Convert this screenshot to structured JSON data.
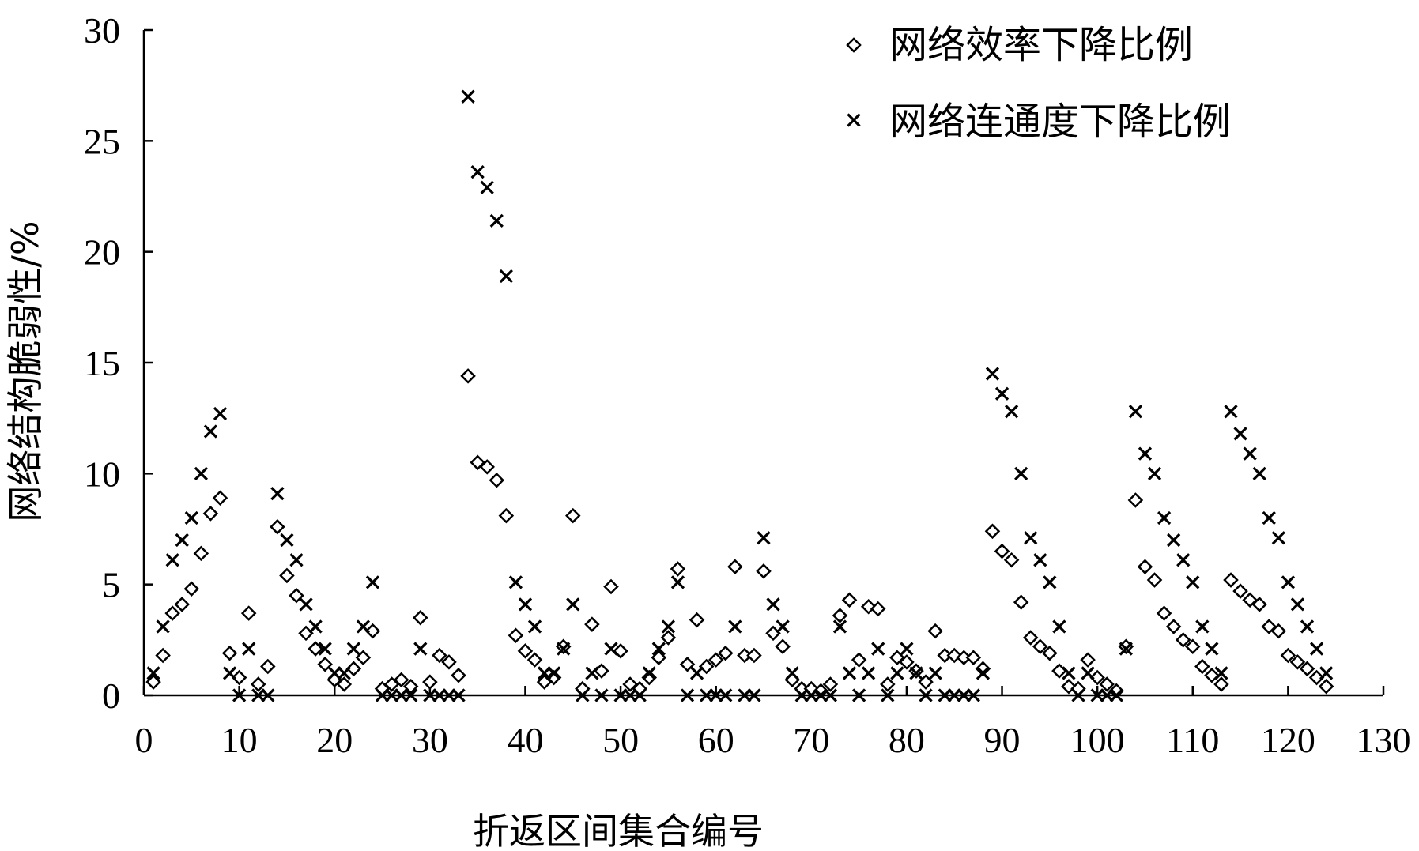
{
  "chart_data": {
    "type": "scatter",
    "xlabel": "折返区间集合编号",
    "ylabel": "网络结构脆弱性/%",
    "xlim": [
      0,
      130
    ],
    "ylim": [
      0,
      30
    ],
    "xticks": [
      0,
      10,
      20,
      30,
      40,
      50,
      60,
      70,
      80,
      90,
      100,
      110,
      120,
      130
    ],
    "yticks": [
      0,
      5,
      10,
      15,
      20,
      25,
      30
    ],
    "legend_position": "top-right",
    "grid": false,
    "series": [
      {
        "name": "网络效率下降比例",
        "marker": "diamond",
        "points": [
          [
            1,
            0.6
          ],
          [
            2,
            1.8
          ],
          [
            3,
            3.7
          ],
          [
            4,
            4.1
          ],
          [
            5,
            4.8
          ],
          [
            6,
            6.4
          ],
          [
            7,
            8.2
          ],
          [
            8,
            8.9
          ],
          [
            9,
            1.9
          ],
          [
            10,
            0.8
          ],
          [
            11,
            3.7
          ],
          [
            12,
            0.5
          ],
          [
            13,
            1.3
          ],
          [
            14,
            7.6
          ],
          [
            15,
            5.4
          ],
          [
            16,
            4.5
          ],
          [
            17,
            2.8
          ],
          [
            18,
            2.1
          ],
          [
            19,
            1.4
          ],
          [
            20,
            0.7
          ],
          [
            21,
            0.5
          ],
          [
            22,
            1.2
          ],
          [
            23,
            1.7
          ],
          [
            24,
            2.9
          ],
          [
            25,
            0.3
          ],
          [
            26,
            0.5
          ],
          [
            27,
            0.7
          ],
          [
            28,
            0.4
          ],
          [
            29,
            3.5
          ],
          [
            30,
            0.6
          ],
          [
            31,
            1.8
          ],
          [
            32,
            1.5
          ],
          [
            33,
            0.9
          ],
          [
            34,
            14.4
          ],
          [
            35,
            10.5
          ],
          [
            36,
            10.3
          ],
          [
            37,
            9.7
          ],
          [
            38,
            8.1
          ],
          [
            39,
            2.7
          ],
          [
            40,
            2.0
          ],
          [
            41,
            1.6
          ],
          [
            42,
            0.6
          ],
          [
            43,
            0.8
          ],
          [
            44,
            2.2
          ],
          [
            45,
            8.1
          ],
          [
            46,
            0.3
          ],
          [
            47,
            3.2
          ],
          [
            48,
            1.1
          ],
          [
            49,
            4.9
          ],
          [
            50,
            2.0
          ],
          [
            51,
            0.5
          ],
          [
            52,
            0.3
          ],
          [
            53,
            0.8
          ],
          [
            54,
            1.7
          ],
          [
            55,
            2.6
          ],
          [
            56,
            5.7
          ],
          [
            57,
            1.4
          ],
          [
            58,
            3.4
          ],
          [
            59,
            1.3
          ],
          [
            60,
            1.6
          ],
          [
            61,
            1.9
          ],
          [
            62,
            5.8
          ],
          [
            63,
            1.8
          ],
          [
            64,
            1.8
          ],
          [
            65,
            5.6
          ],
          [
            66,
            2.8
          ],
          [
            67,
            2.2
          ],
          [
            68,
            0.7
          ],
          [
            69,
            0.3
          ],
          [
            70,
            0.3
          ],
          [
            71,
            0.2
          ],
          [
            72,
            0.5
          ],
          [
            73,
            3.6
          ],
          [
            74,
            4.3
          ],
          [
            75,
            1.6
          ],
          [
            76,
            4.0
          ],
          [
            77,
            3.9
          ],
          [
            78,
            0.5
          ],
          [
            79,
            1.7
          ],
          [
            80,
            1.5
          ],
          [
            81,
            1.1
          ],
          [
            82,
            0.6
          ],
          [
            83,
            2.9
          ],
          [
            84,
            1.8
          ],
          [
            85,
            1.8
          ],
          [
            86,
            1.7
          ],
          [
            87,
            1.7
          ],
          [
            88,
            1.2
          ],
          [
            89,
            7.4
          ],
          [
            90,
            6.5
          ],
          [
            91,
            6.1
          ],
          [
            92,
            4.2
          ],
          [
            93,
            2.6
          ],
          [
            94,
            2.2
          ],
          [
            95,
            1.9
          ],
          [
            96,
            1.1
          ],
          [
            97,
            0.4
          ],
          [
            98,
            0.3
          ],
          [
            99,
            1.6
          ],
          [
            100,
            0.8
          ],
          [
            101,
            0.5
          ],
          [
            102,
            0.2
          ],
          [
            103,
            2.2
          ],
          [
            104,
            8.8
          ],
          [
            105,
            5.8
          ],
          [
            106,
            5.2
          ],
          [
            107,
            3.7
          ],
          [
            108,
            3.1
          ],
          [
            109,
            2.5
          ],
          [
            110,
            2.2
          ],
          [
            111,
            1.3
          ],
          [
            112,
            0.9
          ],
          [
            113,
            0.5
          ],
          [
            114,
            5.2
          ],
          [
            115,
            4.7
          ],
          [
            116,
            4.3
          ],
          [
            117,
            4.1
          ],
          [
            118,
            3.1
          ],
          [
            119,
            2.9
          ],
          [
            120,
            1.8
          ],
          [
            121,
            1.5
          ],
          [
            122,
            1.2
          ],
          [
            123,
            0.8
          ],
          [
            124,
            0.4
          ]
        ]
      },
      {
        "name": "网络连通度下降比例",
        "marker": "cross",
        "points": [
          [
            1,
            1.0
          ],
          [
            2,
            3.1
          ],
          [
            3,
            6.1
          ],
          [
            4,
            7.0
          ],
          [
            5,
            8.0
          ],
          [
            6,
            10.0
          ],
          [
            7,
            11.9
          ],
          [
            8,
            12.7
          ],
          [
            9,
            1.0
          ],
          [
            10,
            0.0
          ],
          [
            11,
            2.1
          ],
          [
            12,
            0.0
          ],
          [
            13,
            0.0
          ],
          [
            14,
            9.1
          ],
          [
            15,
            7.0
          ],
          [
            16,
            6.1
          ],
          [
            17,
            4.1
          ],
          [
            18,
            3.1
          ],
          [
            19,
            2.1
          ],
          [
            20,
            1.0
          ],
          [
            21,
            1.0
          ],
          [
            22,
            2.1
          ],
          [
            23,
            3.1
          ],
          [
            24,
            5.1
          ],
          [
            25,
            0.0
          ],
          [
            26,
            0.0
          ],
          [
            27,
            0.0
          ],
          [
            28,
            0.0
          ],
          [
            29,
            2.1
          ],
          [
            30,
            0.0
          ],
          [
            31,
            0.0
          ],
          [
            32,
            0.0
          ],
          [
            33,
            0.0
          ],
          [
            34,
            27.0
          ],
          [
            35,
            23.6
          ],
          [
            36,
            22.9
          ],
          [
            37,
            21.4
          ],
          [
            38,
            18.9
          ],
          [
            39,
            5.1
          ],
          [
            40,
            4.1
          ],
          [
            41,
            3.1
          ],
          [
            42,
            1.0
          ],
          [
            43,
            1.0
          ],
          [
            44,
            2.1
          ],
          [
            45,
            4.1
          ],
          [
            46,
            0.0
          ],
          [
            47,
            1.0
          ],
          [
            48,
            0.0
          ],
          [
            49,
            2.1
          ],
          [
            50,
            0.0
          ],
          [
            51,
            0.0
          ],
          [
            52,
            0.0
          ],
          [
            53,
            1.0
          ],
          [
            54,
            2.1
          ],
          [
            55,
            3.1
          ],
          [
            56,
            5.1
          ],
          [
            57,
            0.0
          ],
          [
            58,
            1.0
          ],
          [
            59,
            0.0
          ],
          [
            60,
            0.0
          ],
          [
            61,
            0.0
          ],
          [
            62,
            3.1
          ],
          [
            63,
            0.0
          ],
          [
            64,
            0.0
          ],
          [
            65,
            7.1
          ],
          [
            66,
            4.1
          ],
          [
            67,
            3.1
          ],
          [
            68,
            1.0
          ],
          [
            69,
            0.0
          ],
          [
            70,
            0.0
          ],
          [
            71,
            0.0
          ],
          [
            72,
            0.0
          ],
          [
            73,
            3.1
          ],
          [
            74,
            1.0
          ],
          [
            75,
            0.0
          ],
          [
            76,
            1.0
          ],
          [
            77,
            2.1
          ],
          [
            78,
            0.0
          ],
          [
            79,
            1.0
          ],
          [
            80,
            2.1
          ],
          [
            81,
            1.0
          ],
          [
            82,
            0.0
          ],
          [
            83,
            1.0
          ],
          [
            84,
            0.0
          ],
          [
            85,
            0.0
          ],
          [
            86,
            0.0
          ],
          [
            87,
            0.0
          ],
          [
            88,
            1.0
          ],
          [
            89,
            14.5
          ],
          [
            90,
            13.6
          ],
          [
            91,
            12.8
          ],
          [
            92,
            10.0
          ],
          [
            93,
            7.1
          ],
          [
            94,
            6.1
          ],
          [
            95,
            5.1
          ],
          [
            96,
            3.1
          ],
          [
            97,
            1.0
          ],
          [
            98,
            0.0
          ],
          [
            99,
            1.0
          ],
          [
            100,
            0.0
          ],
          [
            101,
            0.0
          ],
          [
            102,
            0.0
          ],
          [
            103,
            2.1
          ],
          [
            104,
            12.8
          ],
          [
            105,
            10.9
          ],
          [
            106,
            10.0
          ],
          [
            107,
            8.0
          ],
          [
            108,
            7.0
          ],
          [
            109,
            6.1
          ],
          [
            110,
            5.1
          ],
          [
            111,
            3.1
          ],
          [
            112,
            2.1
          ],
          [
            113,
            1.0
          ],
          [
            114,
            12.8
          ],
          [
            115,
            11.8
          ],
          [
            116,
            10.9
          ],
          [
            117,
            10.0
          ],
          [
            118,
            8.0
          ],
          [
            119,
            7.1
          ],
          [
            120,
            5.1
          ],
          [
            121,
            4.1
          ],
          [
            122,
            3.1
          ],
          [
            123,
            2.1
          ],
          [
            124,
            1.0
          ]
        ]
      }
    ]
  }
}
